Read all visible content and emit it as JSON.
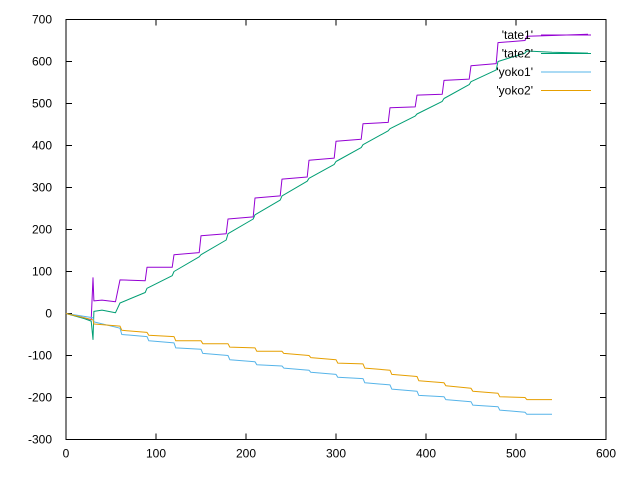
{
  "chart_data": {
    "type": "line",
    "title": "",
    "xlabel": "",
    "ylabel": "",
    "xlim": [
      0,
      600
    ],
    "ylim": [
      -300,
      700
    ],
    "x_ticks": [
      0,
      100,
      200,
      300,
      400,
      500,
      600
    ],
    "y_ticks": [
      -300,
      -200,
      -100,
      0,
      100,
      200,
      300,
      400,
      500,
      600,
      700
    ],
    "x_tick_labels": [
      "0",
      "100",
      "200",
      "300",
      "400",
      "500",
      "600"
    ],
    "y_tick_labels": [
      "-300",
      "-200",
      "-100",
      "0",
      "100",
      "200",
      "300",
      "400",
      "500",
      "600",
      "700"
    ],
    "grid": false,
    "legend_position": "top-right",
    "series": [
      {
        "name": "'tate1'",
        "color": "#9400d3",
        "points": [
          [
            0,
            0
          ],
          [
            20,
            -10
          ],
          [
            28,
            -15
          ],
          [
            30,
            85
          ],
          [
            31,
            30
          ],
          [
            40,
            32
          ],
          [
            55,
            28
          ],
          [
            60,
            80
          ],
          [
            88,
            78
          ],
          [
            90,
            110
          ],
          [
            118,
            110
          ],
          [
            120,
            140
          ],
          [
            148,
            145
          ],
          [
            150,
            185
          ],
          [
            178,
            190
          ],
          [
            180,
            225
          ],
          [
            208,
            230
          ],
          [
            210,
            275
          ],
          [
            238,
            280
          ],
          [
            240,
            320
          ],
          [
            268,
            325
          ],
          [
            270,
            365
          ],
          [
            298,
            370
          ],
          [
            300,
            410
          ],
          [
            328,
            415
          ],
          [
            330,
            452
          ],
          [
            358,
            455
          ],
          [
            360,
            490
          ],
          [
            388,
            492
          ],
          [
            390,
            520
          ],
          [
            418,
            522
          ],
          [
            420,
            555
          ],
          [
            448,
            558
          ],
          [
            450,
            590
          ],
          [
            478,
            595
          ],
          [
            480,
            645
          ],
          [
            510,
            650
          ],
          [
            512,
            660
          ],
          [
            540,
            662
          ],
          [
            580,
            665
          ]
        ]
      },
      {
        "name": "'tate2'",
        "color": "#009e73",
        "points": [
          [
            0,
            0
          ],
          [
            20,
            -12
          ],
          [
            28,
            -18
          ],
          [
            30,
            -62
          ],
          [
            31,
            5
          ],
          [
            40,
            8
          ],
          [
            55,
            2
          ],
          [
            60,
            25
          ],
          [
            88,
            50
          ],
          [
            90,
            60
          ],
          [
            118,
            90
          ],
          [
            120,
            100
          ],
          [
            148,
            135
          ],
          [
            150,
            140
          ],
          [
            178,
            175
          ],
          [
            180,
            190
          ],
          [
            208,
            225
          ],
          [
            210,
            235
          ],
          [
            238,
            270
          ],
          [
            240,
            280
          ],
          [
            268,
            315
          ],
          [
            270,
            322
          ],
          [
            298,
            355
          ],
          [
            300,
            362
          ],
          [
            328,
            395
          ],
          [
            330,
            402
          ],
          [
            358,
            435
          ],
          [
            360,
            440
          ],
          [
            388,
            470
          ],
          [
            390,
            475
          ],
          [
            418,
            505
          ],
          [
            420,
            512
          ],
          [
            448,
            545
          ],
          [
            450,
            552
          ],
          [
            478,
            580
          ],
          [
            480,
            600
          ],
          [
            510,
            620
          ],
          [
            512,
            625
          ],
          [
            540,
            622
          ],
          [
            580,
            620
          ]
        ]
      },
      {
        "name": "'yoko1'",
        "color": "#56b4e9",
        "points": [
          [
            0,
            0
          ],
          [
            30,
            -10
          ],
          [
            31,
            -20
          ],
          [
            60,
            -35
          ],
          [
            62,
            -50
          ],
          [
            90,
            -55
          ],
          [
            92,
            -65
          ],
          [
            120,
            -70
          ],
          [
            122,
            -82
          ],
          [
            150,
            -85
          ],
          [
            152,
            -95
          ],
          [
            180,
            -100
          ],
          [
            182,
            -110
          ],
          [
            210,
            -115
          ],
          [
            212,
            -122
          ],
          [
            240,
            -125
          ],
          [
            242,
            -130
          ],
          [
            270,
            -135
          ],
          [
            272,
            -140
          ],
          [
            300,
            -145
          ],
          [
            302,
            -152
          ],
          [
            330,
            -155
          ],
          [
            332,
            -165
          ],
          [
            360,
            -170
          ],
          [
            362,
            -180
          ],
          [
            390,
            -185
          ],
          [
            392,
            -195
          ],
          [
            420,
            -198
          ],
          [
            422,
            -205
          ],
          [
            450,
            -210
          ],
          [
            452,
            -218
          ],
          [
            480,
            -222
          ],
          [
            482,
            -230
          ],
          [
            510,
            -235
          ],
          [
            512,
            -240
          ],
          [
            540,
            -240
          ]
        ]
      },
      {
        "name": "'yoko2'",
        "color": "#e69f00",
        "points": [
          [
            0,
            0
          ],
          [
            30,
            -15
          ],
          [
            31,
            -25
          ],
          [
            60,
            -30
          ],
          [
            62,
            -40
          ],
          [
            90,
            -45
          ],
          [
            92,
            -52
          ],
          [
            120,
            -55
          ],
          [
            122,
            -65
          ],
          [
            150,
            -65
          ],
          [
            152,
            -72
          ],
          [
            180,
            -72
          ],
          [
            182,
            -80
          ],
          [
            210,
            -82
          ],
          [
            212,
            -90
          ],
          [
            240,
            -90
          ],
          [
            242,
            -95
          ],
          [
            270,
            -100
          ],
          [
            272,
            -105
          ],
          [
            300,
            -110
          ],
          [
            302,
            -118
          ],
          [
            330,
            -120
          ],
          [
            332,
            -130
          ],
          [
            360,
            -135
          ],
          [
            362,
            -145
          ],
          [
            390,
            -150
          ],
          [
            392,
            -160
          ],
          [
            420,
            -165
          ],
          [
            422,
            -172
          ],
          [
            450,
            -178
          ],
          [
            452,
            -185
          ],
          [
            480,
            -190
          ],
          [
            482,
            -198
          ],
          [
            510,
            -200
          ],
          [
            512,
            -205
          ],
          [
            540,
            -205
          ]
        ]
      }
    ]
  }
}
